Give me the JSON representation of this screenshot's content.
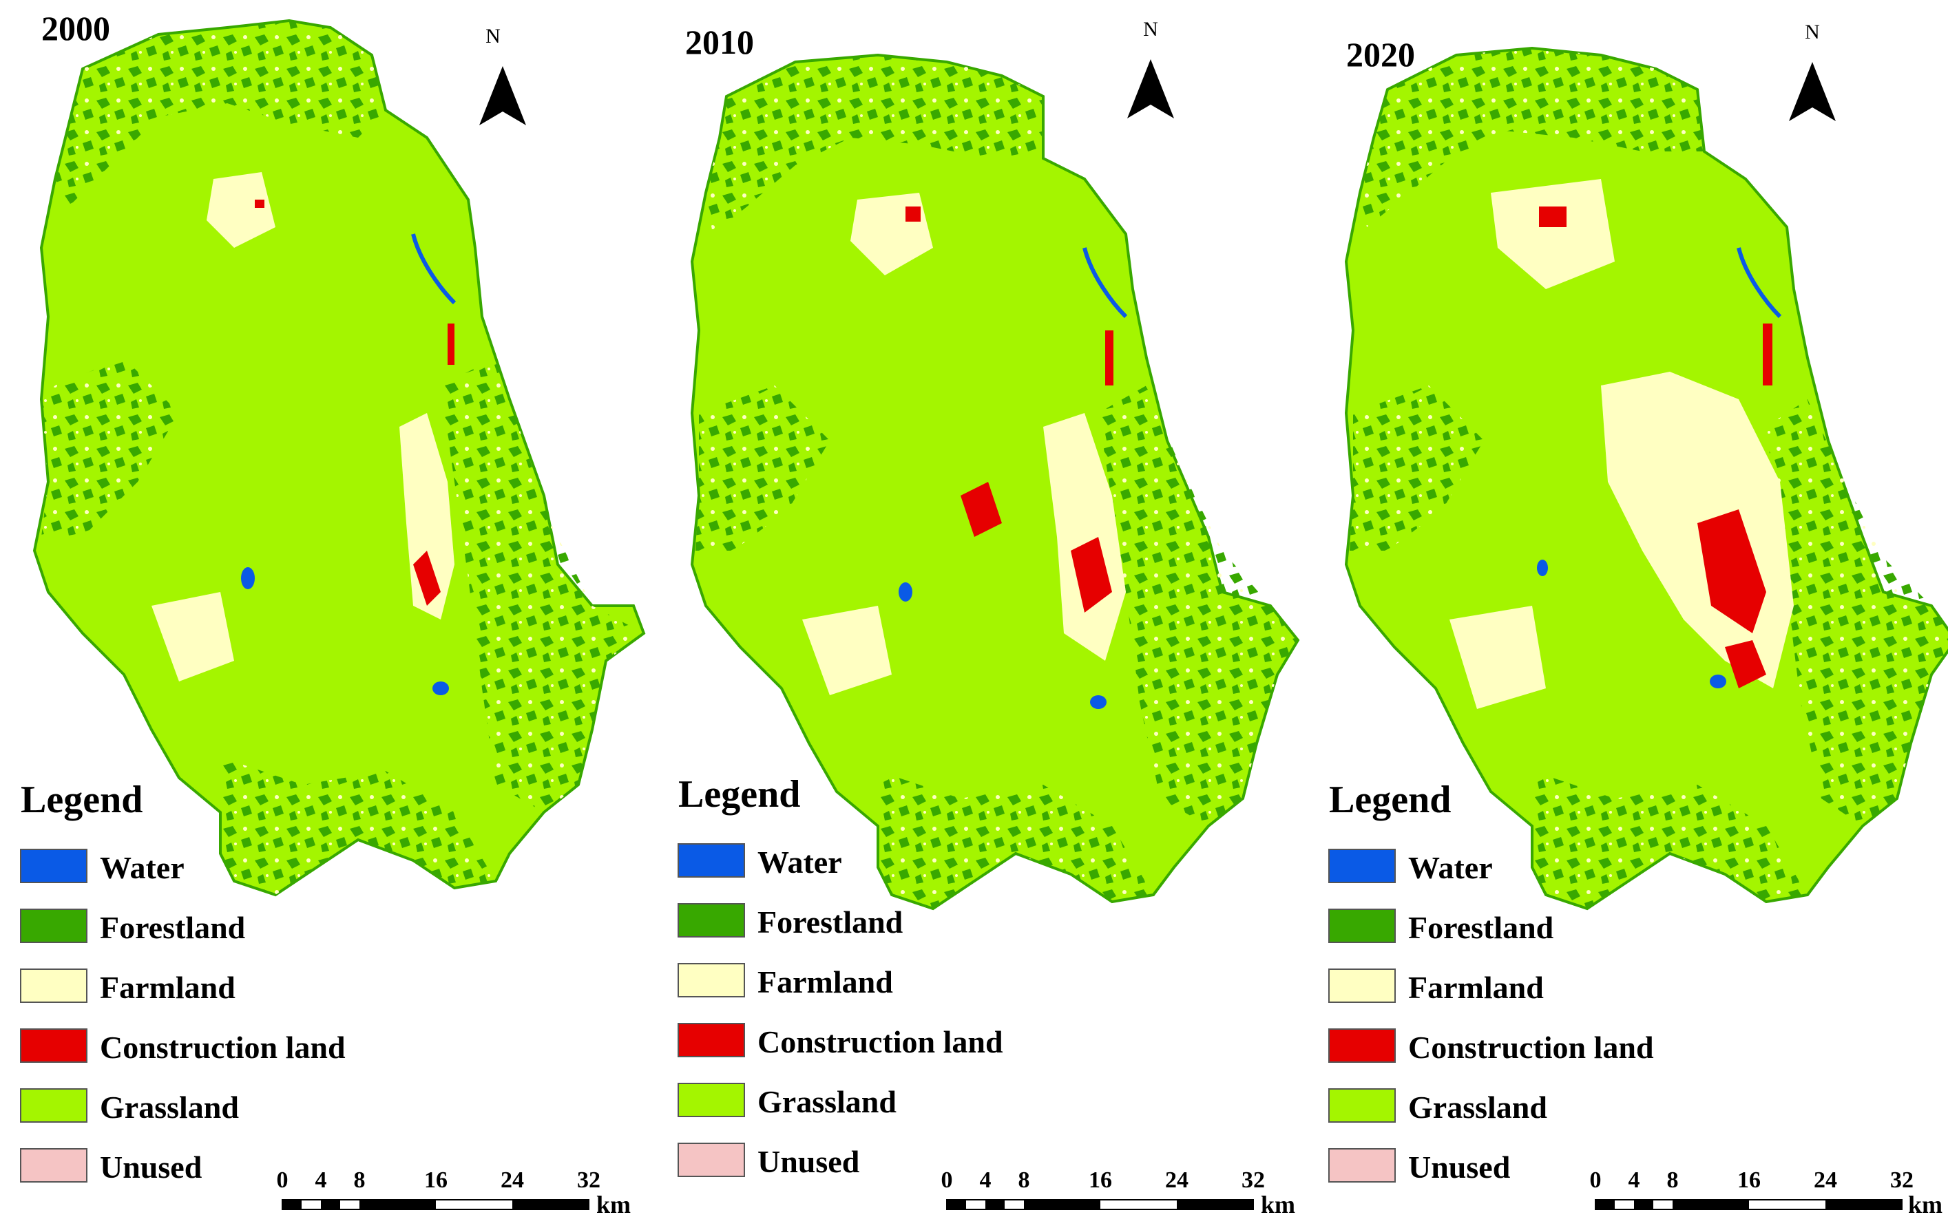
{
  "figure": {
    "north_label": "N",
    "legend_title": "Legend",
    "scale_unit": "km",
    "scale_ticks": [
      "0",
      "4",
      "8",
      "16",
      "24",
      "32"
    ],
    "scale_values_km": [
      0,
      4,
      8,
      16,
      24,
      32
    ],
    "north_arrow_icon": "north-arrow-icon"
  },
  "legend_items": [
    {
      "label": "Water",
      "color": "#0a5ae6"
    },
    {
      "label": "Forestland",
      "color": "#38a800"
    },
    {
      "label": "Farmland",
      "color": "#ffffc2"
    },
    {
      "label": "Construction land",
      "color": "#e60000"
    },
    {
      "label": "Grassland",
      "color": "#a4f500"
    },
    {
      "label": "Unused",
      "color": "#f5c4c4"
    }
  ],
  "panels": [
    {
      "year": "2000"
    },
    {
      "year": "2010"
    },
    {
      "year": "2020"
    }
  ]
}
